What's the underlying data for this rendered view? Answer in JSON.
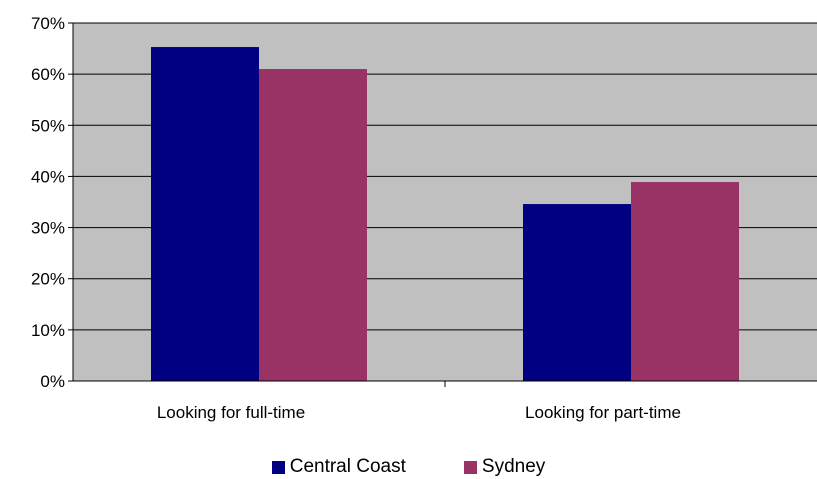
{
  "chart_data": {
    "type": "bar",
    "categories": [
      "Looking for full-time",
      "Looking for part-time"
    ],
    "series": [
      {
        "name": "Central Coast",
        "values": [
          65.3,
          34.6
        ],
        "color": "#000080"
      },
      {
        "name": "Sydney",
        "values": [
          61.0,
          38.9
        ],
        "color": "#993366"
      }
    ],
    "y_ticks": [
      "0%",
      "10%",
      "20%",
      "30%",
      "40%",
      "50%",
      "60%",
      "70%"
    ],
    "ylim": [
      0,
      70
    ],
    "grid": true,
    "plot_background": "#c0c0c0",
    "legend_position": "bottom"
  }
}
